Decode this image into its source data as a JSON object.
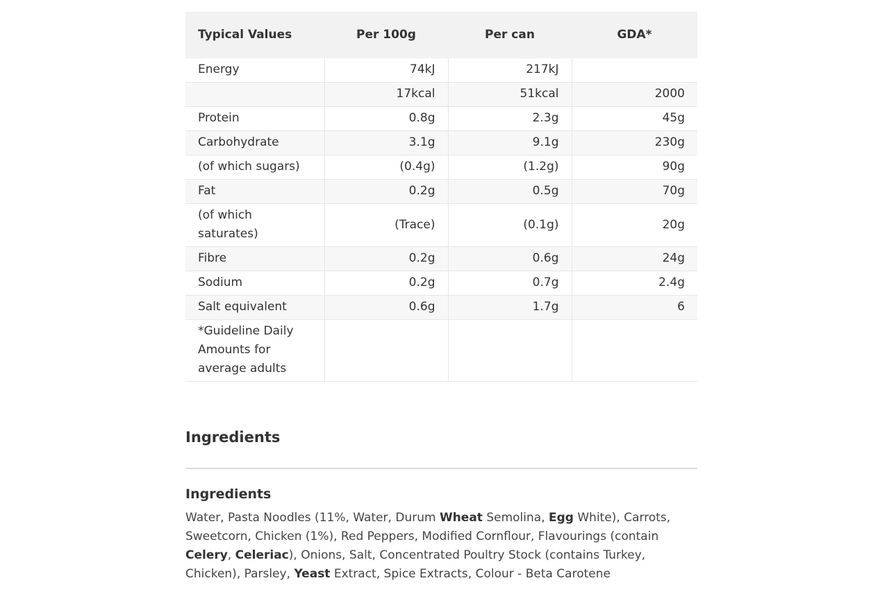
{
  "nutrition": {
    "headers": [
      "Typical Values",
      "Per 100g",
      "Per can",
      "GDA*"
    ],
    "rows": [
      {
        "label": "Energy",
        "per100g": "74kJ",
        "percan": "217kJ",
        "gda": ""
      },
      {
        "label": "",
        "per100g": "17kcal",
        "percan": "51kcal",
        "gda": "2000"
      },
      {
        "label": "Protein",
        "per100g": "0.8g",
        "percan": "2.3g",
        "gda": "45g"
      },
      {
        "label": "Carbohydrate",
        "per100g": "3.1g",
        "percan": "9.1g",
        "gda": "230g"
      },
      {
        "label": "(of which sugars)",
        "per100g": "(0.4g)",
        "percan": "(1.2g)",
        "gda": "90g"
      },
      {
        "label": "Fat",
        "per100g": "0.2g",
        "percan": "0.5g",
        "gda": "70g"
      },
      {
        "label": "(of which saturates)",
        "per100g": "(Trace)",
        "percan": "(0.1g)",
        "gda": "20g"
      },
      {
        "label": "Fibre",
        "per100g": "0.2g",
        "percan": "0.6g",
        "gda": "24g"
      },
      {
        "label": "Sodium",
        "per100g": "0.2g",
        "percan": "0.7g",
        "gda": "2.4g"
      },
      {
        "label": "Salt equivalent",
        "per100g": "0.6g",
        "percan": "1.7g",
        "gda": "6"
      },
      {
        "label": "*Guideline Daily Amounts for average adults",
        "per100g": "",
        "percan": "",
        "gda": ""
      }
    ]
  },
  "ingredients": {
    "section_title": "Ingredients",
    "sub_title": "Ingredients",
    "text": {
      "p1": "Water, Pasta Noodles (11%, Water, Durum ",
      "b1": "Wheat",
      "p2": " Semolina, ",
      "b2": "Egg",
      "p3": " White), Carrots, Sweetcorn, Chicken (1%), Red Peppers, Modified Cornflour, Flavourings (contain ",
      "b3": "Celery",
      "p4": ", ",
      "b4": "Celeriac",
      "p5": "), Onions, Salt, Concentrated Poultry Stock (contains Turkey, Chicken), Parsley, ",
      "b5": "Yeast",
      "p6": " Extract, Spice Extracts, Colour - Beta Carotene"
    }
  }
}
